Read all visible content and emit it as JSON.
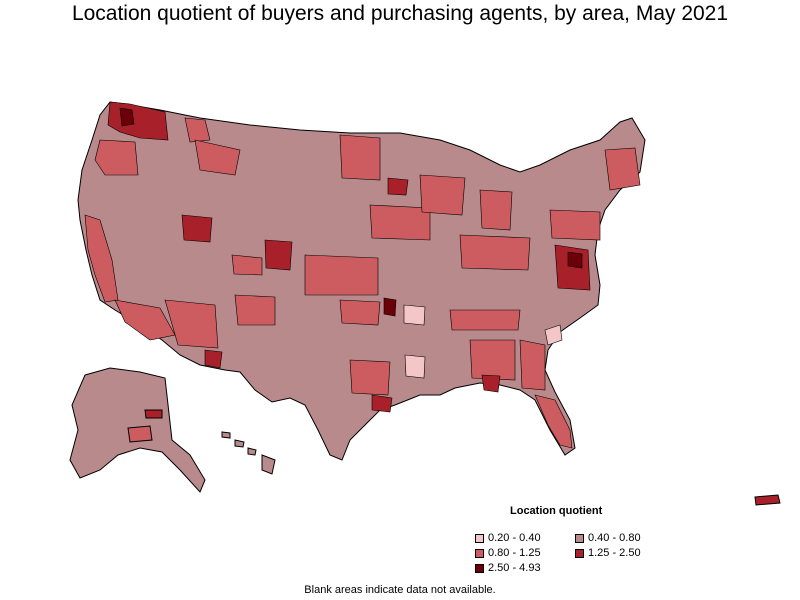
{
  "title": "Location quotient of buyers and purchasing agents, by area, May 2021",
  "legend": {
    "title": "Location quotient",
    "items": [
      {
        "label": "0.20 - 0.40",
        "color": "#f4c6c8"
      },
      {
        "label": "0.40 - 0.80",
        "color": "#b88a8c"
      },
      {
        "label": "0.80 - 1.25",
        "color": "#cd5c60"
      },
      {
        "label": "1.25 - 2.50",
        "color": "#a8202a"
      },
      {
        "label": "2.50 - 4.93",
        "color": "#6b0008"
      }
    ]
  },
  "footnote": "Blank areas indicate data not available.",
  "colors": {
    "background": "#ffffff",
    "border": "#000000"
  }
}
